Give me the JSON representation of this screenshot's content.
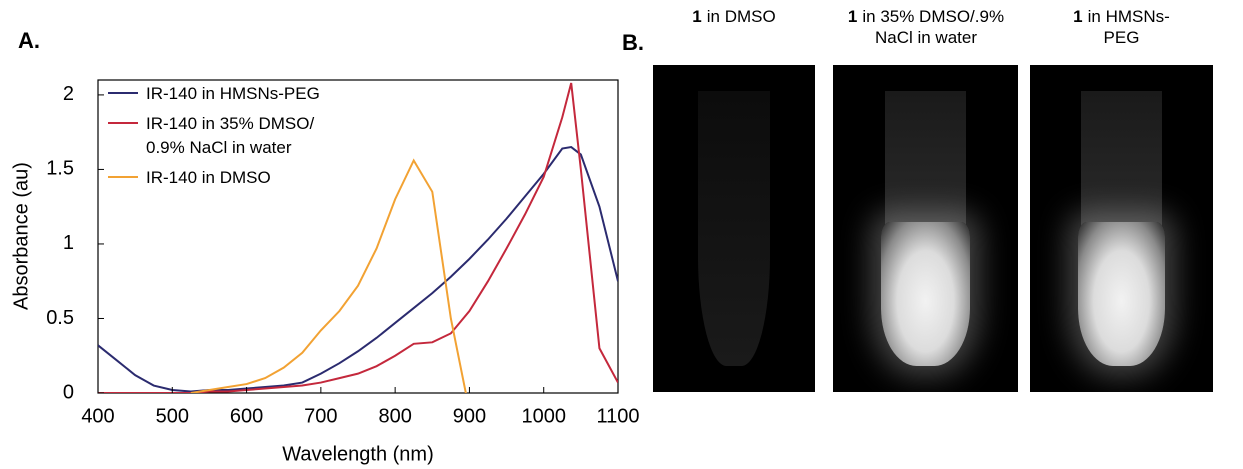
{
  "chart_data": {
    "type": "line",
    "panel_label": "A.",
    "xlabel": "Wavelength (nm)",
    "ylabel": "Absorbance (au)",
    "x": [
      400,
      425,
      450,
      475,
      500,
      525,
      550,
      575,
      600,
      625,
      650,
      675,
      700,
      725,
      750,
      775,
      800,
      825,
      850,
      875,
      900,
      925,
      950,
      975,
      1000,
      1025,
      1037,
      1050,
      1075,
      1100
    ],
    "series": [
      {
        "name": "IR-140 in HMSNs-PEG",
        "color": "#2b2b6f",
        "values": [
          0.32,
          0.22,
          0.12,
          0.05,
          0.02,
          0.01,
          0.02,
          0.02,
          0.03,
          0.04,
          0.05,
          0.07,
          0.13,
          0.2,
          0.28,
          0.37,
          0.47,
          0.57,
          0.67,
          0.78,
          0.9,
          1.03,
          1.17,
          1.32,
          1.47,
          1.64,
          1.65,
          1.6,
          1.25,
          0.75
        ]
      },
      {
        "name": "IR-140 in 35% DMSO/\n0.9% NaCl in water",
        "color": "#c4283c",
        "values": [
          0,
          0,
          0,
          0,
          0,
          0,
          0.01,
          0.01,
          0.02,
          0.03,
          0.04,
          0.05,
          0.07,
          0.1,
          0.13,
          0.18,
          0.25,
          0.33,
          0.34,
          0.4,
          0.55,
          0.75,
          0.97,
          1.2,
          1.45,
          1.85,
          2.08,
          1.5,
          0.3,
          0.07
        ]
      },
      {
        "name": "IR-140 in DMSO",
        "color": "#f2a233",
        "values": [
          null,
          null,
          null,
          null,
          null,
          0,
          0.02,
          0.04,
          0.06,
          0.1,
          0.17,
          0.27,
          0.42,
          0.55,
          0.72,
          0.97,
          1.3,
          1.56,
          1.35,
          0.5,
          -0.12,
          null,
          null,
          null,
          null,
          null,
          null,
          null,
          null,
          null
        ]
      }
    ],
    "xlim": [
      400,
      1100
    ],
    "xticks": [
      400,
      500,
      600,
      700,
      800,
      900,
      1000,
      1100
    ],
    "ylim": [
      0,
      2.1
    ],
    "yticks": [
      0,
      0.5,
      1,
      1.5,
      2
    ]
  },
  "panel_b": {
    "label": "B.",
    "images": [
      {
        "bold": "1",
        "text": "in DMSO",
        "bright": false
      },
      {
        "bold": "1",
        "text": "in 35% DMSO/.9%\nNaCl in water",
        "bright": true
      },
      {
        "bold": "1",
        "text": "in HMSNs-\nPEG",
        "bright": true
      }
    ]
  }
}
